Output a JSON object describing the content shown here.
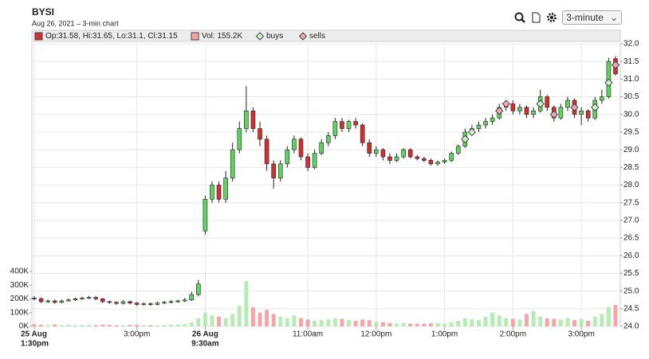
{
  "toolbar": {
    "interval": "3-minute"
  },
  "chart_data": {
    "type": "candlestick",
    "title": "BYSI",
    "subtitle": "Aug 26, 2021  – 3-min chart",
    "legend": {
      "ohlc": "Op:31.58, Hi:31.65, Lo:31.1, Cl:31.15",
      "volume": "Vol: 155.2K"
    },
    "colors": {
      "up": "#5ed35e",
      "down": "#d42f2f",
      "up_volume": "#b4ecb4",
      "down_volume": "#f5a5a5"
    },
    "grid": true,
    "xlim": [
      0,
      85
    ],
    "xticks": [
      {
        "value": 0,
        "label": "25 Aug",
        "sublabel": "1:30pm"
      },
      {
        "value": 15,
        "label": "3:00pm"
      },
      {
        "value": 25,
        "label": "26 Aug",
        "sublabel": "9:30am"
      },
      {
        "value": 40,
        "label": "11:00am"
      },
      {
        "value": 50,
        "label": "12:00pm"
      },
      {
        "value": 60,
        "label": "1:00pm"
      },
      {
        "value": 70,
        "label": "2:00pm"
      },
      {
        "value": 80,
        "label": "3:00pm"
      }
    ],
    "ylim": [
      24,
      32
    ],
    "yticks": [
      {
        "value": 24,
        "label": "24.0"
      },
      24.5,
      {
        "value": 25,
        "label": "25.0"
      },
      25.5,
      {
        "value": 26,
        "label": "26.0"
      },
      26.5,
      {
        "value": 27,
        "label": "27.0"
      },
      27.5,
      {
        "value": 28,
        "label": "28.0"
      },
      28.5,
      {
        "value": 29,
        "label": "29.0"
      },
      29.5,
      {
        "value": 30,
        "label": "30.0"
      },
      30.5,
      {
        "value": 31,
        "label": "31.0"
      },
      31.5,
      {
        "value": 32,
        "label": "32.0"
      }
    ],
    "vlim": [
      0,
      400000
    ],
    "vticks": [
      {
        "value": 0,
        "label": "0K"
      },
      {
        "value": 100000,
        "label": "100K"
      },
      {
        "value": 200000,
        "label": "200K"
      },
      {
        "value": 300000,
        "label": "300K"
      },
      {
        "value": 400000,
        "label": "400K"
      }
    ],
    "open": [
      24.8,
      24.78,
      24.7,
      24.72,
      24.68,
      24.72,
      24.75,
      24.78,
      24.8,
      24.82,
      24.78,
      24.7,
      24.68,
      24.65,
      24.7,
      24.66,
      24.62,
      24.64,
      24.62,
      24.66,
      24.68,
      24.7,
      24.72,
      24.75,
      24.9,
      26.7,
      27.6,
      28.0,
      27.6,
      28.2,
      29.0,
      29.6,
      30.1,
      29.6,
      29.3,
      28.6,
      28.2,
      28.6,
      29.0,
      29.3,
      28.8,
      28.5,
      28.9,
      29.2,
      29.4,
      29.8,
      29.6,
      29.8,
      29.7,
      29.2,
      28.9,
      29.0,
      28.8,
      28.7,
      28.8,
      29.0,
      28.8,
      28.75,
      28.7,
      28.6,
      28.65,
      28.7,
      28.9,
      29.1,
      29.5,
      29.6,
      29.7,
      29.8,
      29.9,
      30.2,
      30.3,
      30.1,
      30.2,
      30.0,
      30.1,
      30.5,
      30.2,
      29.9,
      30.2,
      30.4,
      30.0,
      30.1,
      29.9,
      30.4,
      30.5,
      31.58
    ],
    "high": [
      24.86,
      24.82,
      24.76,
      24.76,
      24.76,
      24.79,
      24.82,
      24.84,
      24.86,
      24.85,
      24.8,
      24.73,
      24.71,
      24.74,
      24.73,
      24.69,
      24.68,
      24.68,
      24.7,
      24.72,
      24.74,
      24.76,
      24.8,
      24.98,
      25.32,
      27.7,
      28.1,
      28.1,
      28.4,
      29.2,
      29.8,
      30.8,
      30.2,
      29.8,
      29.4,
      28.7,
      28.7,
      29.1,
      29.4,
      29.35,
      28.9,
      29.0,
      29.3,
      29.5,
      29.9,
      29.9,
      29.85,
      29.9,
      29.75,
      29.3,
      29.1,
      29.05,
      28.9,
      28.9,
      29.05,
      29.05,
      28.85,
      28.8,
      28.75,
      28.7,
      28.75,
      28.95,
      29.15,
      29.6,
      29.7,
      29.8,
      29.9,
      30.0,
      30.3,
      30.4,
      30.4,
      30.3,
      30.25,
      30.2,
      30.7,
      30.55,
      30.25,
      30.3,
      30.5,
      30.45,
      30.2,
      30.15,
      30.5,
      30.7,
      31.6,
      31.65
    ],
    "low": [
      24.74,
      24.66,
      24.66,
      24.64,
      24.65,
      24.7,
      24.72,
      24.75,
      24.77,
      24.74,
      24.66,
      24.64,
      24.61,
      24.62,
      24.62,
      24.58,
      24.58,
      24.58,
      24.59,
      24.63,
      24.65,
      24.67,
      24.69,
      24.72,
      24.85,
      26.6,
      27.5,
      27.5,
      27.5,
      28.1,
      28.9,
      29.5,
      29.5,
      29.1,
      28.4,
      27.9,
      28.1,
      28.5,
      28.9,
      28.7,
      28.4,
      28.45,
      28.85,
      29.1,
      29.3,
      29.5,
      29.5,
      29.6,
      29.1,
      28.8,
      28.8,
      28.7,
      28.6,
      28.65,
      28.75,
      28.75,
      28.7,
      28.65,
      28.55,
      28.55,
      28.6,
      28.65,
      28.85,
      29.05,
      29.4,
      29.5,
      29.6,
      29.7,
      29.85,
      30.1,
      30.0,
      30.0,
      29.9,
      29.9,
      30.05,
      30.1,
      29.8,
      29.85,
      30.1,
      29.9,
      29.7,
      29.8,
      29.85,
      30.3,
      30.45,
      31.1
    ],
    "close": [
      24.78,
      24.7,
      24.72,
      24.68,
      24.72,
      24.75,
      24.78,
      24.8,
      24.82,
      24.78,
      24.7,
      24.68,
      24.65,
      24.7,
      24.66,
      24.62,
      24.64,
      24.62,
      24.66,
      24.68,
      24.7,
      24.72,
      24.75,
      24.9,
      25.2,
      27.6,
      28.0,
      27.6,
      28.2,
      29.0,
      29.6,
      30.1,
      29.6,
      29.3,
      28.6,
      28.2,
      28.6,
      29.0,
      29.3,
      28.8,
      28.5,
      28.9,
      29.2,
      29.4,
      29.8,
      29.6,
      29.8,
      29.7,
      29.2,
      28.9,
      29.0,
      28.8,
      28.7,
      28.8,
      29.0,
      28.8,
      28.75,
      28.7,
      28.6,
      28.65,
      28.7,
      28.9,
      29.1,
      29.5,
      29.6,
      29.7,
      29.8,
      29.9,
      30.2,
      30.3,
      30.1,
      30.2,
      30.0,
      30.1,
      30.5,
      30.2,
      29.9,
      30.2,
      30.4,
      30.0,
      30.1,
      29.9,
      30.4,
      30.5,
      31.5,
      31.15
    ],
    "volume": [
      15000,
      12000,
      10000,
      14000,
      9000,
      11000,
      8000,
      10000,
      12000,
      9000,
      13000,
      10000,
      8000,
      9000,
      11000,
      12000,
      10000,
      9000,
      8000,
      10000,
      12000,
      14000,
      16000,
      30000,
      60000,
      100000,
      80000,
      70000,
      60000,
      90000,
      150000,
      330000,
      140000,
      100000,
      120000,
      90000,
      70000,
      60000,
      80000,
      60000,
      50000,
      40000,
      45000,
      50000,
      60000,
      55000,
      45000,
      40000,
      50000,
      45000,
      35000,
      30000,
      25000,
      20000,
      25000,
      20000,
      18000,
      20000,
      22000,
      25000,
      20000,
      30000,
      40000,
      60000,
      50000,
      45000,
      70000,
      100000,
      80000,
      60000,
      55000,
      50000,
      90000,
      110000,
      70000,
      60000,
      55000,
      50000,
      60000,
      45000,
      55000,
      40000,
      70000,
      90000,
      140000,
      155200
    ],
    "series": [
      {
        "name": "buys",
        "color": "#c8f5c8",
        "x": [
          63,
          64,
          74,
          82,
          84
        ],
        "values": [
          29.3,
          29.5,
          30.3,
          30.2,
          30.9
        ]
      },
      {
        "name": "sells",
        "color": "#f5a5b4",
        "x": [
          68,
          69,
          76,
          79,
          85
        ],
        "values": [
          30.1,
          30.3,
          30.0,
          30.2,
          31.4
        ]
      }
    ]
  }
}
